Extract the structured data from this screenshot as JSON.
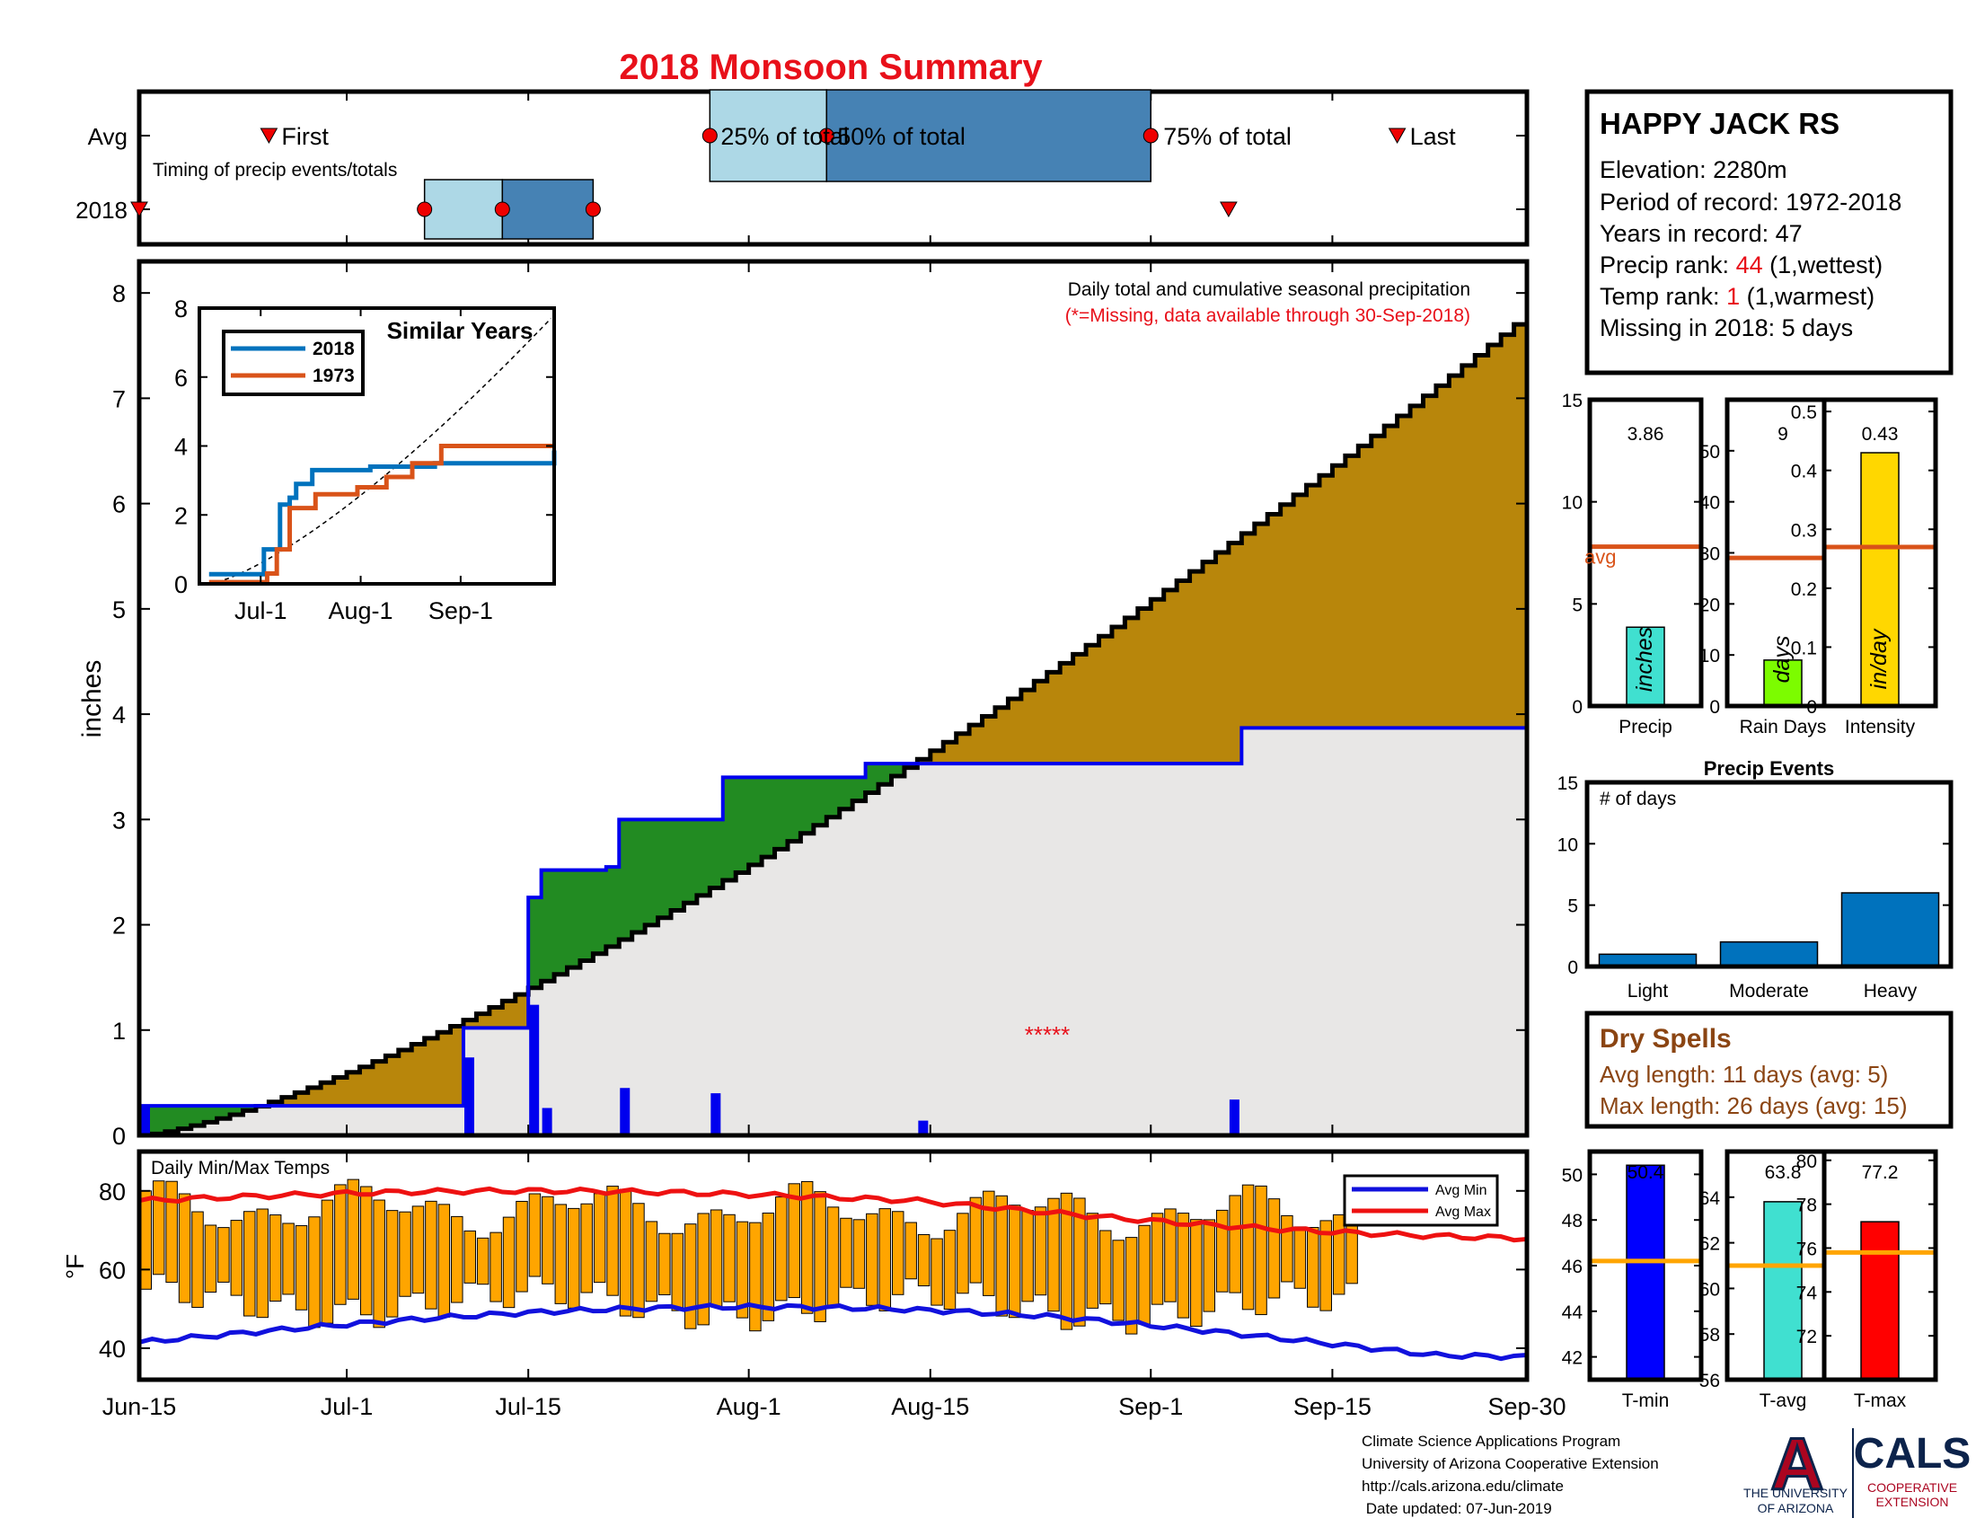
{
  "title": "2018 Monsoon Summary",
  "station": {
    "name": "HAPPY JACK RS",
    "elevation": "Elevation: 2280m",
    "period": "Period of record: 1972-2018",
    "years": "Years in record: 47",
    "precip_rank_prefix": "Precip rank: ",
    "precip_rank_value": "44",
    "precip_rank_suffix": " (1,wettest)",
    "temp_rank_prefix": "Temp rank: ",
    "temp_rank_value": "1",
    "temp_rank_suffix": " (1,warmest)",
    "missing": "Missing in 2018: 5 days"
  },
  "dry_spells": {
    "title": "Dry Spells",
    "avg": "Avg length: 11 days (avg: 5)",
    "max": "Max length: 26 days (avg: 15)"
  },
  "footer": {
    "line1": "Climate Science Applications Program",
    "line2": "University of Arizona Cooperative Extension",
    "line3": "http://cals.arizona.edu/climate",
    "line4": " Date updated: 07-Jun-2019"
  },
  "logos": {
    "ua_letter": "A",
    "ua_line1": "THE UNIVERSITY",
    "ua_line2": "OF ARIZONA",
    "cals": "CALS",
    "cals_line1": "COOPERATIVE",
    "cals_line2": "EXTENSION"
  },
  "colors": {
    "title": "#e8101a",
    "cumulative_above": "#b8860b",
    "cumulative_below": "#228b22",
    "observed_line": "#0000ee",
    "background_area": "#e8e7e6",
    "temp_bars": "#ffa500",
    "avg_max": "#ee1111",
    "avg_min": "#1111dd",
    "avg_marker": "#d95319",
    "timing_light": "#add8e6",
    "timing_dark": "#4682b4",
    "brown_text": "#8b4513"
  },
  "chart_data": [
    {
      "id": "timing",
      "type": "table",
      "ylabels": [
        "Avg",
        "2018"
      ],
      "subtitle": "Timing of precip events/totals",
      "avg": {
        "first": "Jun-25",
        "p25": "Jul-29",
        "p50": "Aug-7",
        "p75": "Sep-1",
        "last": "Sep-20"
      },
      "y2018": {
        "first": "Jun-15",
        "p25": "Jul-7",
        "p50": "Jul-13",
        "p75": "Jul-20",
        "last": "Sep-7"
      },
      "labels": {
        "first": "First",
        "p25": "25% of total",
        "p50": "50% of total",
        "p75": "75% of total",
        "last": "Last"
      }
    },
    {
      "id": "main",
      "type": "area",
      "ylabel": "inches",
      "ylim": [
        0,
        8.3
      ],
      "yticks": [
        0,
        1,
        2,
        3,
        4,
        5,
        6,
        7,
        8
      ],
      "xticks": [
        "Jun-15",
        "Jul-1",
        "Jul-15",
        "Aug-1",
        "Aug-15",
        "Sep-1",
        "Sep-15",
        "Sep-30"
      ],
      "note1": "Daily total and cumulative seasonal precipitation",
      "note2": "(*=Missing, data available through 30-Sep-2018)",
      "missing_marker": "*****",
      "cum_avg_end": 7.8,
      "cum_obs_steps": [
        [
          0,
          0.28
        ],
        [
          24,
          0.28
        ],
        [
          25,
          1.02
        ],
        [
          29,
          1.02
        ],
        [
          30,
          2.26
        ],
        [
          31,
          2.52
        ],
        [
          36,
          2.55
        ],
        [
          37,
          3.0
        ],
        [
          44,
          3.0
        ],
        [
          45,
          3.4
        ],
        [
          55,
          3.4
        ],
        [
          56,
          3.53
        ],
        [
          84,
          3.53
        ],
        [
          85,
          3.87
        ],
        [
          107,
          3.87
        ]
      ],
      "daily_bars": [
        [
          0,
          0.28
        ],
        [
          25,
          0.74
        ],
        [
          30,
          1.24
        ],
        [
          31,
          0.26
        ],
        [
          36,
          0.02
        ],
        [
          37,
          0.45
        ],
        [
          44,
          0.4
        ],
        [
          60,
          0.14
        ],
        [
          84,
          0.34
        ]
      ]
    },
    {
      "id": "inset",
      "type": "line",
      "title": "Similar Years",
      "xticks": [
        "Jul-1",
        "Aug-1",
        "Sep-1"
      ],
      "yticks": [
        0,
        2,
        4,
        6,
        8
      ],
      "ylim": [
        0,
        8
      ],
      "series": [
        {
          "name": "2018",
          "color": "#0072bd",
          "steps": [
            [
              0,
              0.28
            ],
            [
              17,
              1.0
            ],
            [
              22,
              2.3
            ],
            [
              25,
              2.5
            ],
            [
              27,
              2.9
            ],
            [
              32,
              3.3
            ],
            [
              50,
              3.4
            ],
            [
              70,
              3.5
            ],
            [
              107,
              3.87
            ]
          ]
        },
        {
          "name": "1973",
          "color": "#d95319",
          "steps": [
            [
              0,
              0.05
            ],
            [
              18,
              0.3
            ],
            [
              21,
              1.0
            ],
            [
              25,
              2.2
            ],
            [
              33,
              2.6
            ],
            [
              46,
              2.8
            ],
            [
              55,
              3.1
            ],
            [
              63,
              3.5
            ],
            [
              72,
              4.0
            ],
            [
              107,
              4.0
            ]
          ]
        }
      ]
    },
    {
      "id": "temps",
      "type": "bar",
      "title": "Daily Min/Max Temps",
      "ylabel": "°F",
      "ylim": [
        32,
        90
      ],
      "yticks": [
        40,
        60,
        80
      ],
      "legend": [
        "Avg Min",
        "Avg Max"
      ]
    },
    {
      "id": "precip_small",
      "type": "bar",
      "panels": [
        {
          "label": "Precip",
          "value": 3.86,
          "value_text": "3.86",
          "unit": "inches",
          "avg": 7.8,
          "avg_text": "avg",
          "ylim": [
            0,
            15
          ],
          "yticks": [
            0,
            5,
            10,
            15
          ],
          "color": "#40e0d0"
        },
        {
          "label": "Rain Days",
          "value": 9,
          "value_text": "9",
          "unit": "days",
          "avg": 29,
          "ylim": [
            0,
            60
          ],
          "yticks": [
            0,
            10,
            20,
            30,
            40,
            50
          ],
          "color": "#7cfc00"
        },
        {
          "label": "Intensity",
          "value": 0.43,
          "value_text": "0.43",
          "unit": "in/day",
          "avg": 0.27,
          "ylim": [
            0,
            0.52
          ],
          "yticks": [
            0,
            0.1,
            0.2,
            0.3,
            0.4,
            0.5
          ],
          "color": "#ffd700"
        }
      ]
    },
    {
      "id": "events",
      "type": "bar",
      "title": "Precip Events",
      "ylabel_inside": "# of days",
      "categories": [
        "Light",
        "Moderate",
        "Heavy"
      ],
      "values": [
        1,
        2,
        6
      ],
      "ylim": [
        0,
        15
      ],
      "yticks": [
        0,
        5,
        10,
        15
      ]
    },
    {
      "id": "temp_small",
      "type": "bar",
      "panels": [
        {
          "label": "T-min",
          "value": 50.4,
          "value_text": "50.4",
          "avg": 46.2,
          "ylim": [
            41,
            51
          ],
          "yticks": [
            42,
            44,
            46,
            48,
            50
          ],
          "color": "#0000ff"
        },
        {
          "label": "T-avg",
          "value": 63.8,
          "value_text": "63.8",
          "avg": 61.0,
          "ylim": [
            56,
            66
          ],
          "yticks": [
            56,
            58,
            60,
            62,
            64
          ],
          "color": "#40e0d0"
        },
        {
          "label": "T-max",
          "value": 77.2,
          "value_text": "77.2",
          "avg": 75.8,
          "ylim": [
            70,
            80.4
          ],
          "yticks": [
            72,
            74,
            76,
            78,
            80
          ],
          "color": "#ff0000"
        }
      ]
    }
  ]
}
